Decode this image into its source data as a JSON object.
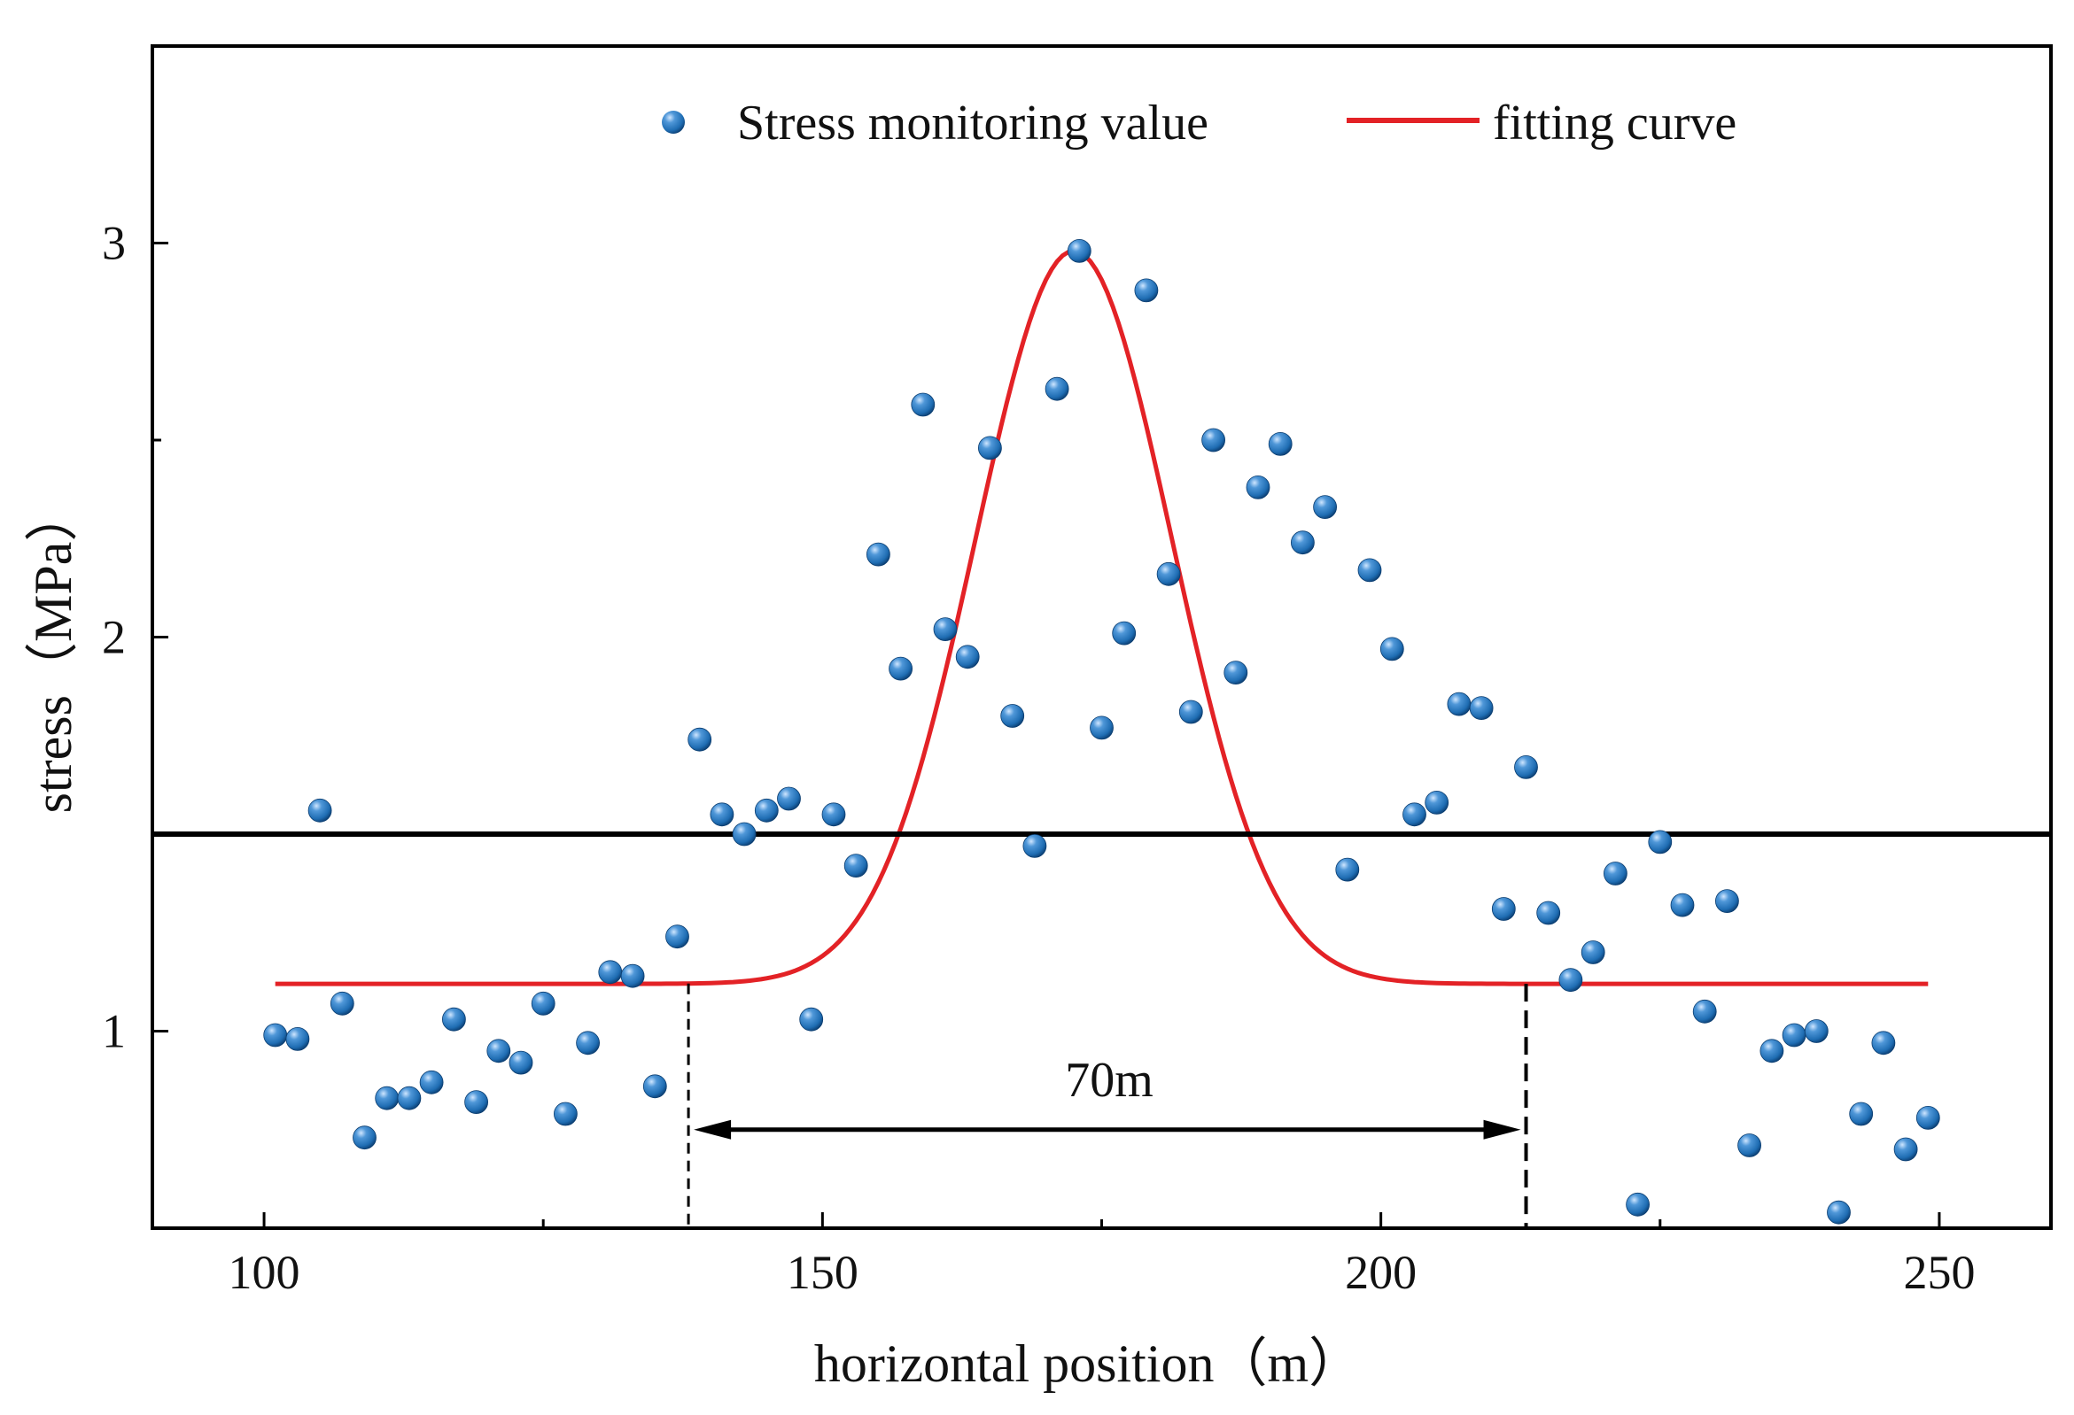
{
  "chart_data": {
    "type": "scatter",
    "title": "",
    "xlabel": "horizontal position（m）",
    "ylabel": "stress（MPa）",
    "xlim": [
      90,
      260
    ],
    "ylim": [
      0.5,
      3.5
    ],
    "xticks": [
      100,
      150,
      200,
      250
    ],
    "xtick_labels": [
      "100",
      "150",
      "200",
      "250"
    ],
    "yticks": [
      1,
      2,
      3
    ],
    "ytick_labels": [
      "1",
      "2",
      "3"
    ],
    "grid": false,
    "legend": {
      "position": "top-center",
      "entries": [
        "Stress monitoring value",
        "fitting curve"
      ]
    },
    "colors": {
      "points": "#1f6db3",
      "curve": "#e32226",
      "threshold": "#000000",
      "axes": "#000000"
    },
    "series": [
      {
        "name": "Stress monitoring value",
        "kind": "scatter",
        "x": [
          101,
          103,
          105,
          107,
          109,
          111,
          113,
          115,
          117,
          119,
          121,
          123,
          125,
          127,
          129,
          131,
          133,
          135,
          137,
          139,
          141,
          143,
          145,
          147,
          149,
          151,
          153,
          155,
          157,
          159,
          161,
          163,
          165,
          167,
          169,
          171,
          173,
          175,
          177,
          179,
          181,
          183,
          185,
          187,
          189,
          191,
          193,
          195,
          197,
          199,
          201,
          203,
          205,
          207,
          209,
          211,
          213,
          215,
          217,
          219,
          221,
          223,
          225,
          227,
          229,
          231,
          233,
          235,
          237,
          239,
          241,
          243,
          245,
          247,
          249
        ],
        "y": [
          0.99,
          0.98,
          1.56,
          1.07,
          0.73,
          0.83,
          0.83,
          0.87,
          1.03,
          0.82,
          0.95,
          0.92,
          1.07,
          0.79,
          0.97,
          1.15,
          1.14,
          0.86,
          1.24,
          1.74,
          1.55,
          1.5,
          1.56,
          1.59,
          1.03,
          1.55,
          1.42,
          2.21,
          1.92,
          2.59,
          2.02,
          1.95,
          2.48,
          1.8,
          1.47,
          2.63,
          2.98,
          1.77,
          2.01,
          2.88,
          2.16,
          1.81,
          2.5,
          1.91,
          2.38,
          2.49,
          2.24,
          2.33,
          1.41,
          2.17,
          1.97,
          1.55,
          1.58,
          1.83,
          1.82,
          1.31,
          1.67,
          1.3,
          1.13,
          1.2,
          1.4,
          0.56,
          1.48,
          1.32,
          1.05,
          1.33,
          0.71,
          0.95,
          0.99,
          1.0,
          0.54,
          0.79,
          0.97,
          0.7,
          0.78
        ]
      },
      {
        "name": "fitting curve",
        "kind": "line",
        "model": "gaussian",
        "baseline": 1.12,
        "amplitude": 1.86,
        "center": 172.5,
        "sigma": 8.8,
        "x_range": [
          101,
          249
        ]
      }
    ],
    "threshold_line": {
      "y": 1.5
    },
    "annotation": {
      "label": "70m",
      "x_start": 138,
      "x_end": 213,
      "y": 0.75
    }
  }
}
